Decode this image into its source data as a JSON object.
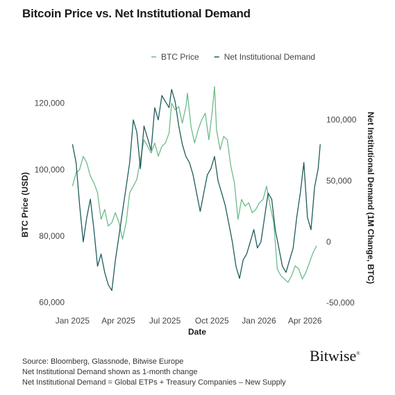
{
  "header": {
    "title": "Bitcoin Price vs. Net Institutional Demand"
  },
  "footer": {
    "source_lines": [
      "Source: Bloomberg, Glassnode, Bitwise Europe",
      "Net Institutional Demand shown as 1-month change",
      "Net Institutional Demand = Global ETPs + Treasury Companies – New Supply"
    ],
    "logo": "Bitwise"
  },
  "chart_data": {
    "type": "line",
    "title": "Bitcoin Price vs. Net Institutional Demand",
    "xlabel": "Date",
    "ylabel": "BTC Price (USD)",
    "y2label": "Net Institutional Demand (1M Change, BTC)",
    "x_ticks": [
      "Jan 2025",
      "Apr 2025",
      "Jul 2025",
      "Oct 2025",
      "Jan 2026",
      "Apr 2026"
    ],
    "y_ticks": [
      "60,000",
      "80,000",
      "100,000",
      "120,000"
    ],
    "y_tick_values": [
      60000,
      80000,
      100000,
      120000
    ],
    "y2_ticks": [
      "-50,000",
      "0",
      "50,000",
      "100,000"
    ],
    "y2_tick_values": [
      -50000,
      0,
      50000,
      100000
    ],
    "xlim": [
      "2024-12-26",
      "2026-05-02"
    ],
    "ylim": [
      58000,
      126000
    ],
    "y2lim": [
      -55000,
      130000
    ],
    "grid": false,
    "legend_position": "top-right",
    "series": [
      {
        "name": "BTC Price",
        "axis": "left",
        "color": "#6dbb8a",
        "x": [
          "2025-01-01",
          "2025-01-08",
          "2025-01-15",
          "2025-01-22",
          "2025-01-29",
          "2025-02-05",
          "2025-02-12",
          "2025-02-19",
          "2025-02-26",
          "2025-03-05",
          "2025-03-12",
          "2025-03-19",
          "2025-03-26",
          "2025-04-02",
          "2025-04-09",
          "2025-04-16",
          "2025-04-23",
          "2025-04-30",
          "2025-05-07",
          "2025-05-14",
          "2025-05-21",
          "2025-05-28",
          "2025-06-04",
          "2025-06-11",
          "2025-06-18",
          "2025-06-25",
          "2025-07-02",
          "2025-07-09",
          "2025-07-14",
          "2025-07-21",
          "2025-07-28",
          "2025-08-04",
          "2025-08-11",
          "2025-08-14",
          "2025-08-21",
          "2025-08-28",
          "2025-09-04",
          "2025-09-11",
          "2025-09-18",
          "2025-09-25",
          "2025-10-02",
          "2025-10-06",
          "2025-10-10",
          "2025-10-17",
          "2025-10-24",
          "2025-10-31",
          "2025-11-07",
          "2025-11-14",
          "2025-11-21",
          "2025-11-28",
          "2025-12-05",
          "2025-12-12",
          "2025-12-19",
          "2025-12-26",
          "2026-01-02",
          "2026-01-09",
          "2026-01-16",
          "2026-01-23",
          "2026-01-30",
          "2026-02-06",
          "2026-02-13",
          "2026-02-20",
          "2026-02-27",
          "2026-03-06",
          "2026-03-13",
          "2026-03-20",
          "2026-03-27",
          "2026-04-03",
          "2026-04-10",
          "2026-04-17",
          "2026-04-24"
        ],
        "values": [
          95000,
          99000,
          100000,
          104000,
          102000,
          98000,
          96000,
          93000,
          85000,
          88000,
          83000,
          84000,
          87000,
          84000,
          79000,
          84000,
          93000,
          95000,
          97000,
          103000,
          109000,
          107000,
          105000,
          108000,
          104000,
          107000,
          108000,
          111000,
          120000,
          118000,
          119000,
          114000,
          119000,
          123000,
          113000,
          108000,
          112000,
          115000,
          117000,
          109000,
          118000,
          125000,
          112000,
          106000,
          110000,
          109000,
          101000,
          96000,
          85000,
          91000,
          89000,
          90000,
          87000,
          88000,
          90000,
          91000,
          95000,
          89000,
          84000,
          70000,
          68000,
          67000,
          66000,
          68000,
          71000,
          70000,
          67000,
          69000,
          72000,
          75000,
          77000
        ]
      },
      {
        "name": "Net Institutional Demand",
        "axis": "right",
        "color": "#1f5a5a",
        "x": [
          "2025-01-01",
          "2025-01-08",
          "2025-01-15",
          "2025-01-22",
          "2025-01-29",
          "2025-02-05",
          "2025-02-12",
          "2025-02-19",
          "2025-02-26",
          "2025-03-05",
          "2025-03-12",
          "2025-03-19",
          "2025-03-26",
          "2025-04-02",
          "2025-04-09",
          "2025-04-16",
          "2025-04-23",
          "2025-04-30",
          "2025-05-07",
          "2025-05-14",
          "2025-05-21",
          "2025-05-28",
          "2025-06-04",
          "2025-06-11",
          "2025-06-18",
          "2025-06-25",
          "2025-07-02",
          "2025-07-09",
          "2025-07-14",
          "2025-07-21",
          "2025-07-28",
          "2025-08-04",
          "2025-08-11",
          "2025-08-18",
          "2025-08-25",
          "2025-09-01",
          "2025-09-08",
          "2025-09-15",
          "2025-09-22",
          "2025-09-29",
          "2025-10-06",
          "2025-10-13",
          "2025-10-20",
          "2025-10-27",
          "2025-11-03",
          "2025-11-10",
          "2025-11-17",
          "2025-11-24",
          "2025-12-01",
          "2025-12-08",
          "2025-12-15",
          "2025-12-22",
          "2025-12-29",
          "2026-01-05",
          "2026-01-12",
          "2026-01-19",
          "2026-01-26",
          "2026-02-02",
          "2026-02-09",
          "2026-02-16",
          "2026-02-23",
          "2026-03-02",
          "2026-03-09",
          "2026-03-16",
          "2026-03-23",
          "2026-03-30",
          "2026-04-06",
          "2026-04-13",
          "2026-04-20",
          "2026-04-27",
          "2026-05-01"
        ],
        "values": [
          80000,
          65000,
          30000,
          0,
          20000,
          35000,
          10000,
          -20000,
          -10000,
          -25000,
          -35000,
          -40000,
          -15000,
          5000,
          25000,
          45000,
          65000,
          100000,
          90000,
          60000,
          95000,
          85000,
          75000,
          110000,
          100000,
          120000,
          115000,
          110000,
          125000,
          115000,
          95000,
          80000,
          70000,
          65000,
          55000,
          40000,
          25000,
          40000,
          55000,
          60000,
          70000,
          50000,
          40000,
          30000,
          15000,
          0,
          -20000,
          -30000,
          -15000,
          -10000,
          0,
          10000,
          -5000,
          0,
          20000,
          40000,
          35000,
          10000,
          -5000,
          -20000,
          -25000,
          -15000,
          -5000,
          20000,
          40000,
          65000,
          20000,
          10000,
          45000,
          60000,
          80000
        ]
      }
    ]
  }
}
